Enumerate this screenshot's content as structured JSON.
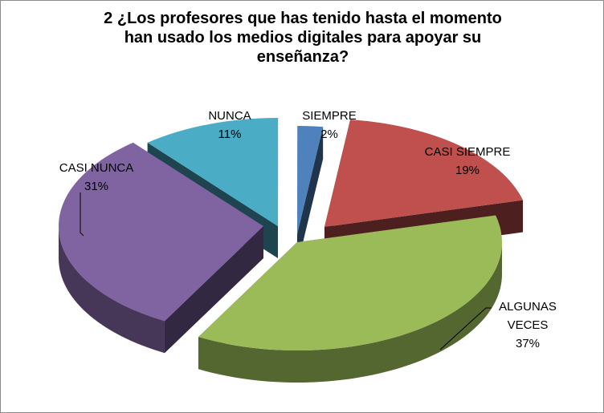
{
  "chart_data": {
    "type": "pie",
    "title_lines": [
      "2 ¿Los profesores que has tenido hasta el momento",
      "han usado los medios digitales para apoyar su",
      "enseñanza?"
    ],
    "slices": [
      {
        "name": "SIEMPRE",
        "value": 2,
        "pct_label": "2%",
        "color": "#4f81bd"
      },
      {
        "name": "CASI SIEMPRE",
        "value": 19,
        "pct_label": "19%",
        "color": "#c0504d"
      },
      {
        "name": "ALGUNAS VECES",
        "value": 37,
        "pct_label": "37%",
        "color": "#9bbb59"
      },
      {
        "name": "CASI NUNCA",
        "value": 31,
        "pct_label": "31%",
        "color": "#8064a2"
      },
      {
        "name": "NUNCA",
        "value": 11,
        "pct_label": "11%",
        "color": "#4bacc6"
      }
    ],
    "label_lines": {
      "SIEMPRE": [
        "SIEMPRE",
        "2%"
      ],
      "CASI SIEMPRE": [
        "CASI SIEMPRE",
        "19%"
      ],
      "ALGUNAS VECES": [
        "ALGUNAS",
        "VECES",
        "37%"
      ],
      "CASI NUNCA": [
        "CASI NUNCA",
        "31%"
      ],
      "NUNCA": [
        "NUNCA",
        "11%"
      ]
    },
    "legend": "none",
    "style": "3d-exploded"
  }
}
